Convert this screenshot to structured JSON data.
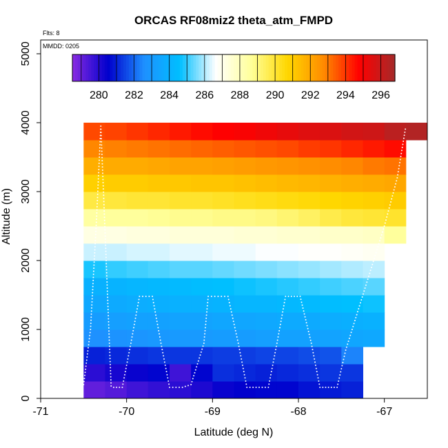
{
  "chart_data": {
    "type": "heatmap",
    "title": "ORCAS RF08miz2 theta_atm_FMPD",
    "flts_note": "Flts: 8",
    "mmdd_note": "MMDD: 0205",
    "xlabel": "Latitude (deg N)",
    "ylabel": "Altitude (m)",
    "xlim": [
      -71,
      -66.5
    ],
    "ylim": [
      0,
      5200
    ],
    "x_ticks": [
      -71,
      -70,
      -69,
      -68,
      -67
    ],
    "y_ticks": [
      0,
      1000,
      2000,
      3000,
      4000,
      5000
    ],
    "colorbar": {
      "range": [
        278.5,
        296.8
      ],
      "ticks": [
        280,
        282,
        284,
        286,
        288,
        290,
        292,
        294,
        296
      ],
      "colors": [
        "#8a2be2",
        "#0000cd",
        "#1e90ff",
        "#00bfff",
        "#ffffff",
        "#ffff99",
        "#ffd700",
        "#ff8c00",
        "#ff0000",
        "#a52a2a"
      ]
    },
    "cell_width_deg": 0.25,
    "cell_height_m": 250,
    "x_start": -70.5,
    "rows": [
      {
        "alt": 0,
        "end": -67.25,
        "values": [
          279.1,
          279.3,
          279.6,
          279.8,
          279.9,
          280.1,
          280.4,
          280.5,
          280.6,
          280.6,
          280.8,
          280.9,
          281.0
        ]
      },
      {
        "alt": 250,
        "end": -67.25,
        "values": [
          279.9,
          280.2,
          280.4,
          280.6,
          279.6,
          280.6,
          281.2,
          281.1,
          281.0,
          281.1,
          281.2,
          281.3,
          281.3
        ]
      },
      {
        "alt": 500,
        "end": -67.25,
        "values": [
          281.0,
          281.1,
          281.2,
          281.3,
          281.3,
          281.3,
          281.4,
          281.4,
          281.5,
          281.5,
          281.6,
          281.7,
          282.4
        ]
      },
      {
        "alt": 750,
        "end": -67.0,
        "values": [
          282.6,
          282.7,
          282.8,
          282.9,
          283.0,
          283.0,
          283.1,
          283.1,
          283.2,
          283.3,
          283.3,
          283.4,
          283.5,
          283.6
        ]
      },
      {
        "alt": 1000,
        "end": -67.0,
        "values": [
          283.1,
          283.2,
          283.3,
          283.3,
          283.4,
          283.4,
          283.5,
          283.5,
          283.6,
          283.7,
          283.7,
          283.8,
          283.9,
          284.0
        ]
      },
      {
        "alt": 1250,
        "end": -67.0,
        "values": [
          283.6,
          283.7,
          283.8,
          283.9,
          284.0,
          284.0,
          284.1,
          284.2,
          284.2,
          284.3,
          284.4,
          284.5,
          284.6,
          284.7
        ]
      },
      {
        "alt": 1500,
        "end": -67.0,
        "values": [
          284.0,
          284.1,
          284.2,
          284.3,
          284.4,
          284.5,
          284.6,
          284.7,
          284.8,
          284.9,
          285.0,
          285.1,
          285.2,
          285.3
        ]
      },
      {
        "alt": 1750,
        "end": -67.0,
        "values": [
          284.8,
          285.0,
          285.1,
          285.2,
          285.3,
          285.3,
          285.4,
          285.5,
          285.6,
          285.7,
          285.8,
          285.9,
          286.0,
          286.1
        ]
      },
      {
        "alt": 2000,
        "end": -67.0,
        "values": [
          286.2,
          286.2,
          286.3,
          286.3,
          286.4,
          286.4,
          286.5,
          286.5,
          286.6,
          286.6,
          286.7,
          286.7,
          286.8,
          286.9
        ]
      },
      {
        "alt": 2250,
        "end": -66.75,
        "values": [
          287.2,
          287.2,
          287.3,
          287.3,
          287.4,
          287.4,
          287.4,
          287.5,
          287.5,
          287.6,
          287.6,
          287.7,
          287.7,
          287.8,
          288.6
        ]
      },
      {
        "alt": 2500,
        "end": -66.75,
        "values": [
          288.5,
          288.6,
          288.6,
          288.7,
          288.8,
          288.8,
          288.9,
          288.9,
          289.0,
          289.2,
          289.4,
          289.7,
          289.9,
          290.0,
          290.1
        ]
      },
      {
        "alt": 2750,
        "end": -66.75,
        "values": [
          289.8,
          289.9,
          290.0,
          290.0,
          290.1,
          290.1,
          290.2,
          290.3,
          290.4,
          290.5,
          290.6,
          290.7,
          290.8,
          290.9,
          291.0
        ]
      },
      {
        "alt": 3000,
        "end": -66.75,
        "values": [
          290.9,
          291.0,
          291.0,
          291.1,
          291.1,
          291.2,
          291.2,
          291.3,
          291.4,
          291.5,
          291.6,
          291.7,
          291.8,
          291.9,
          292.0
        ]
      },
      {
        "alt": 3250,
        "end": -66.75,
        "values": [
          291.8,
          291.9,
          291.9,
          292.0,
          292.1,
          292.1,
          292.2,
          292.3,
          292.4,
          292.5,
          292.6,
          292.7,
          292.8,
          293.0,
          293.1
        ]
      },
      {
        "alt": 3500,
        "end": -66.75,
        "values": [
          292.8,
          292.9,
          293.0,
          293.1,
          293.2,
          293.3,
          293.4,
          293.5,
          293.6,
          293.7,
          293.9,
          294.0,
          294.2,
          294.4,
          294.6
        ]
      },
      {
        "alt": 3750,
        "end": -66.5,
        "values": [
          293.7,
          293.8,
          294.0,
          294.2,
          294.4,
          294.6,
          294.8,
          294.9,
          295.1,
          295.3,
          295.5,
          295.6,
          295.8,
          295.9,
          296.3,
          296.5
        ]
      }
    ],
    "flight_track": [
      [
        -70.5,
        200
      ],
      [
        -70.42,
        1000
      ],
      [
        -70.35,
        2600
      ],
      [
        -70.3,
        3950
      ],
      [
        -70.25,
        2400
      ],
      [
        -70.2,
        800
      ],
      [
        -70.18,
        180
      ],
      [
        -70.15,
        160
      ],
      [
        -70.05,
        160
      ],
      [
        -69.95,
        800
      ],
      [
        -69.85,
        1480
      ],
      [
        -69.7,
        1480
      ],
      [
        -69.6,
        800
      ],
      [
        -69.5,
        160
      ],
      [
        -69.35,
        160
      ],
      [
        -69.25,
        200
      ],
      [
        -69.1,
        800
      ],
      [
        -69.05,
        1480
      ],
      [
        -68.82,
        1480
      ],
      [
        -68.7,
        800
      ],
      [
        -68.6,
        160
      ],
      [
        -68.35,
        160
      ],
      [
        -68.25,
        800
      ],
      [
        -68.15,
        1480
      ],
      [
        -67.98,
        1480
      ],
      [
        -67.85,
        800
      ],
      [
        -67.75,
        160
      ],
      [
        -67.55,
        160
      ],
      [
        -67.45,
        700
      ],
      [
        -67.3,
        1300
      ],
      [
        -67.15,
        1900
      ],
      [
        -67.0,
        2500
      ],
      [
        -66.85,
        3200
      ],
      [
        -66.75,
        3950
      ]
    ]
  }
}
